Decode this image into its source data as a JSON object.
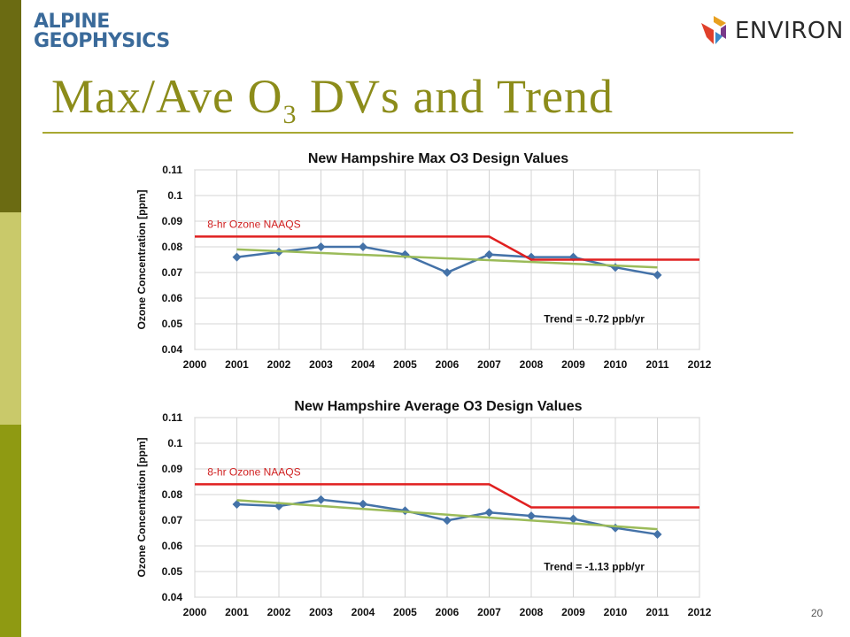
{
  "slide": {
    "title_main": "Max/Ave O",
    "title_sub": "3",
    "title_rest": " DVs and Trend",
    "page_number": "20"
  },
  "logos": {
    "alpine_line1": "ALPINE",
    "alpine_line2": "GEOPHYSICS",
    "environ": "ENVIRON"
  },
  "colors": {
    "data_series": "#4472a8",
    "trend_line": "#9bbb59",
    "naaqs_line": "#e02020",
    "naaqs_label": "#d02020"
  },
  "chart_data": [
    {
      "type": "line",
      "title": "New Hampshire Max O3 Design Values",
      "xlabel": "",
      "ylabel": "Ozone Concentration [ppm]",
      "xlim": [
        2000,
        2012
      ],
      "ylim": [
        0.04,
        0.11
      ],
      "x_ticks": [
        "2000",
        "2001",
        "2002",
        "2003",
        "2004",
        "2005",
        "2006",
        "2007",
        "2008",
        "2009",
        "2010",
        "2011",
        "2012"
      ],
      "y_ticks": [
        "0.04",
        "0.05",
        "0.06",
        "0.07",
        "0.08",
        "0.09",
        "0.1",
        "0.11"
      ],
      "grid": true,
      "series": [
        {
          "role": "data",
          "x": [
            2001,
            2002,
            2003,
            2004,
            2005,
            2006,
            2007,
            2008,
            2009,
            2010,
            2011
          ],
          "y": [
            0.076,
            0.078,
            0.08,
            0.08,
            0.077,
            0.07,
            0.077,
            0.076,
            0.076,
            0.072,
            0.069
          ]
        },
        {
          "role": "trend",
          "x": [
            2001,
            2011
          ],
          "y": [
            0.079,
            0.072
          ]
        },
        {
          "role": "naaqs",
          "x": [
            2000,
            2007,
            2008,
            2012
          ],
          "y": [
            0.084,
            0.084,
            0.075,
            0.075
          ]
        }
      ],
      "annotations": [
        {
          "text": "8-hr Ozone NAAQS",
          "role": "naaqs_label",
          "x": 2000.3,
          "y": 0.0875
        },
        {
          "text": "Trend = -0.72  ppb/yr",
          "role": "trend_label",
          "x": 2008.3,
          "y": 0.0505
        }
      ]
    },
    {
      "type": "line",
      "title": "New Hampshire Average O3 Design Values",
      "xlabel": "",
      "ylabel": "Ozone Concentration [ppm]",
      "xlim": [
        2000,
        2012
      ],
      "ylim": [
        0.04,
        0.11
      ],
      "x_ticks": [
        "2000",
        "2001",
        "2002",
        "2003",
        "2004",
        "2005",
        "2006",
        "2007",
        "2008",
        "2009",
        "2010",
        "2011",
        "2012"
      ],
      "y_ticks": [
        "0.04",
        "0.05",
        "0.06",
        "0.07",
        "0.08",
        "0.09",
        "0.1",
        "0.11"
      ],
      "grid": true,
      "series": [
        {
          "role": "data",
          "x": [
            2001,
            2002,
            2003,
            2004,
            2005,
            2006,
            2007,
            2008,
            2009,
            2010,
            2011
          ],
          "y": [
            0.0762,
            0.0755,
            0.078,
            0.0763,
            0.0737,
            0.0699,
            0.073,
            0.0717,
            0.0705,
            0.067,
            0.0645
          ]
        },
        {
          "role": "trend",
          "x": [
            2001,
            2011
          ],
          "y": [
            0.0778,
            0.0665
          ]
        },
        {
          "role": "naaqs",
          "x": [
            2000,
            2007,
            2008,
            2012
          ],
          "y": [
            0.084,
            0.084,
            0.075,
            0.075
          ]
        }
      ],
      "annotations": [
        {
          "text": "8-hr Ozone NAAQS",
          "role": "naaqs_label",
          "x": 2000.3,
          "y": 0.0875
        },
        {
          "text": "Trend =  -1.13  ppb/yr",
          "role": "trend_label",
          "x": 2008.3,
          "y": 0.0505
        }
      ]
    }
  ]
}
